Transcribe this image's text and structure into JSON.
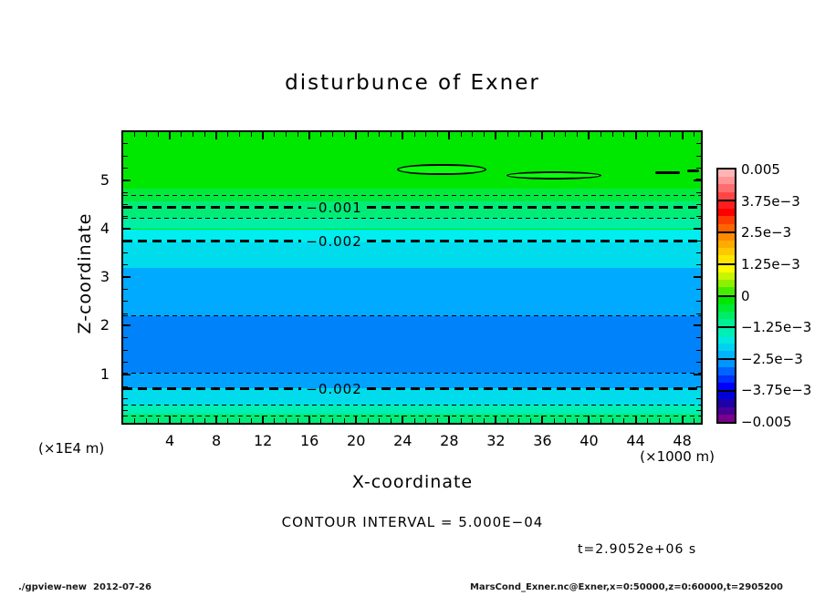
{
  "title": "disturbunce of Exner",
  "x_axis": {
    "label": "X-coordinate",
    "unit_note": "(×1000 m)",
    "tick_labels": [
      4,
      8,
      12,
      16,
      20,
      24,
      28,
      32,
      36,
      40,
      44,
      48
    ],
    "min": 0,
    "max": 49.6,
    "major_step": 4,
    "minor_step": 1
  },
  "y_axis": {
    "label": "Z-coordinate",
    "unit_note": "(×1E4 m)",
    "tick_labels": [
      1,
      2,
      3,
      4,
      5
    ],
    "min": 0,
    "max": 5.99,
    "major_step": 1,
    "minor_step": 0.25
  },
  "notes": {
    "contour_interval": "CONTOUR INTERVAL = 5.000E−04",
    "time": "t=2.9052e+06 s"
  },
  "footer": {
    "left": "./gpview-new  2012-07-26",
    "right": "MarsCond_Exner.nc@Exner,x=0:50000,z=0:60000,t=2905200"
  },
  "colorbar": {
    "boundary_labels": [
      "0.005",
      "3.75e−3",
      "2.5e−3",
      "1.25e−3",
      "0",
      "−1.25e−3",
      "−2.5e−3",
      "−3.75e−3",
      "−0.005"
    ],
    "blocks": [
      {
        "from": 0.005,
        "to": 0.00375,
        "cells": [
          "#ffb4b4",
          "#ff9696",
          "#ff6e6e",
          "#ff4646"
        ]
      },
      {
        "from": 0.00375,
        "to": 0.0025,
        "cells": [
          "#ff1e1e",
          "#ff0000",
          "#ff3c00",
          "#ff6400"
        ]
      },
      {
        "from": 0.0025,
        "to": 0.00125,
        "cells": [
          "#ff8c00",
          "#ffaa00",
          "#ffc800",
          "#ffe600"
        ]
      },
      {
        "from": 0.00125,
        "to": 0,
        "cells": [
          "#fafa00",
          "#c8f500",
          "#8cf000",
          "#46ec00"
        ]
      },
      {
        "from": 0,
        "to": -0.00125,
        "cells": [
          "#00e800",
          "#00ea32",
          "#00ec64",
          "#00ee96"
        ]
      },
      {
        "from": -0.00125,
        "to": -0.0025,
        "cells": [
          "#00efb4",
          "#00e9dc",
          "#00d2f0",
          "#00b4ff"
        ]
      },
      {
        "from": -0.0025,
        "to": -0.00375,
        "cells": [
          "#0096ff",
          "#0064ff",
          "#0032ff",
          "#0000ff"
        ]
      },
      {
        "from": -0.00375,
        "to": -0.005,
        "cells": [
          "#0000dc",
          "#1e00aa",
          "#460096",
          "#78008c"
        ]
      }
    ]
  },
  "chart_data": {
    "type": "heatmap",
    "title": "disturbunce of Exner",
    "xlabel": "X-coordinate (×1000 m)",
    "ylabel": "Z-coordinate (×1E4 m)",
    "xlim": [
      0,
      49.6
    ],
    "ylim": [
      0,
      5.99
    ],
    "contour_interval": 0.0005,
    "value_range_colorbar": [
      -0.005,
      0.005
    ],
    "fill_bands": [
      {
        "z_top": 5.99,
        "z_bottom": 4.83,
        "approx_value_range": [
          -0.0003,
          0
        ],
        "color": "#00e800"
      },
      {
        "z_top": 4.83,
        "z_bottom": 4.57,
        "approx_value_range": [
          -0.0006,
          -0.0003
        ],
        "color": "#00ea3e"
      },
      {
        "z_top": 4.57,
        "z_bottom": 4.21,
        "approx_value_range": [
          -0.0009,
          -0.0006
        ],
        "color": "#00ec78"
      },
      {
        "z_top": 4.21,
        "z_bottom": 3.99,
        "approx_value_range": [
          -0.00125,
          -0.0009
        ],
        "color": "#00efa5"
      },
      {
        "z_top": 3.99,
        "z_bottom": 3.72,
        "approx_value_range": [
          -0.0016,
          -0.00125
        ],
        "color": "#00eef0"
      },
      {
        "z_top": 3.72,
        "z_bottom": 3.2,
        "approx_value_range": [
          -0.0019,
          -0.0016
        ],
        "color": "#00dcec"
      },
      {
        "z_top": 3.2,
        "z_bottom": 2.19,
        "approx_value_range": [
          -0.0025,
          -0.0019
        ],
        "color": "#00aaff"
      },
      {
        "z_top": 2.19,
        "z_bottom": 1.04,
        "approx_value_range": [
          -0.0029,
          -0.0025
        ],
        "color": "#0082fa"
      },
      {
        "z_top": 1.04,
        "z_bottom": 0.72,
        "approx_value_range": [
          -0.0025,
          -0.0022
        ],
        "color": "#00a2ff"
      },
      {
        "z_top": 0.72,
        "z_bottom": 0.38,
        "approx_value_range": [
          -0.0019,
          -0.0016
        ],
        "color": "#00dcec"
      },
      {
        "z_top": 0.38,
        "z_bottom": 0.18,
        "approx_value_range": [
          -0.00125,
          -0.0009
        ],
        "color": "#00efb4"
      },
      {
        "z_top": 0.18,
        "z_bottom": 0,
        "approx_value_range": [
          -0.0009,
          -0.0006
        ],
        "color": "#00ec78"
      }
    ],
    "contour_lines": [
      {
        "z": 4.68,
        "value": -0.0005,
        "style": "thin-dashed",
        "label": null
      },
      {
        "z": 4.44,
        "value": -0.001,
        "style": "thick-dashed",
        "label": "−0.001",
        "label_x": 15.3
      },
      {
        "z": 4.21,
        "value": -0.0015,
        "style": "thin-dashed",
        "label": null
      },
      {
        "z": 3.74,
        "value": -0.002,
        "style": "thick-dashed",
        "label": "−0.002",
        "label_x": 15.3
      },
      {
        "z": 2.2,
        "value": -0.0025,
        "style": "thin-dashed",
        "label": null
      },
      {
        "z": 1.02,
        "value": -0.0025,
        "style": "thin-dashed",
        "label": null
      },
      {
        "z": 0.7,
        "value": -0.002,
        "style": "thick-dashed",
        "label": "−0.002",
        "label_x": 15.3
      },
      {
        "z": 0.37,
        "value": -0.0015,
        "style": "thin-dashed",
        "label": null
      },
      {
        "z": 0.14,
        "value": -0.001,
        "style": "thin-dashed",
        "label": null
      }
    ],
    "closed_contours": [
      {
        "shape": "lens",
        "x": 27.35,
        "z": 5.22,
        "rx": 3.84,
        "rz": 0.122
      },
      {
        "shape": "lens",
        "x": 36.99,
        "z": 5.1,
        "rx": 4.07,
        "rz": 0.085
      },
      {
        "shape": "segment",
        "x1": 45.68,
        "x2": 47.8,
        "z": 5.16
      },
      {
        "shape": "segment",
        "x1": 48.43,
        "x2": 49.45,
        "z": 5.2
      },
      {
        "shape": "segment",
        "x1": 49.13,
        "x2": 49.6,
        "z": 5.0
      }
    ]
  }
}
